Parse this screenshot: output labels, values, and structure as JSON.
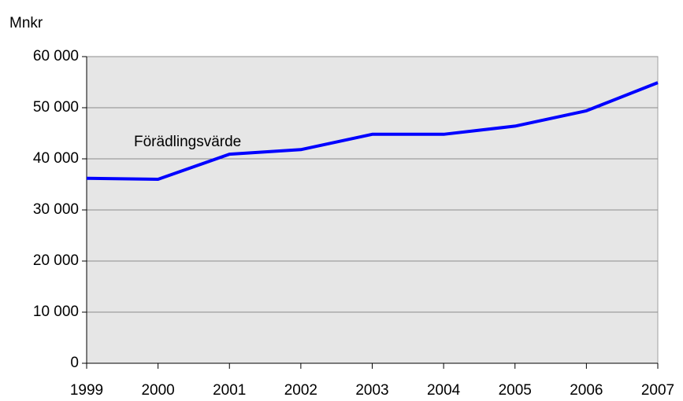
{
  "chart_data": {
    "type": "line",
    "y_axis_label": "Mnkr",
    "x": [
      1999,
      2000,
      2001,
      2002,
      2003,
      2004,
      2005,
      2006,
      2007
    ],
    "series": [
      {
        "name": "Förädlingsvärde",
        "color": "#0000ff",
        "values": [
          36200,
          36000,
          40900,
          41800,
          44800,
          44800,
          46400,
          49400,
          54900
        ]
      }
    ],
    "xlim": [
      1999,
      2007
    ],
    "xticks": [
      1999,
      2000,
      2001,
      2002,
      2003,
      2004,
      2005,
      2006,
      2007
    ],
    "ylim": [
      0,
      60000
    ],
    "yticks": [
      0,
      {
        "value": 10000,
        "label": "10 000"
      },
      {
        "value": 20000,
        "label": "20 000"
      },
      {
        "value": 30000,
        "label": "30 000"
      },
      {
        "value": 40000,
        "label": "40 000"
      },
      {
        "value": 50000,
        "label": "50 000"
      },
      {
        "value": 60000,
        "label": "60 000"
      }
    ],
    "grid": true
  }
}
